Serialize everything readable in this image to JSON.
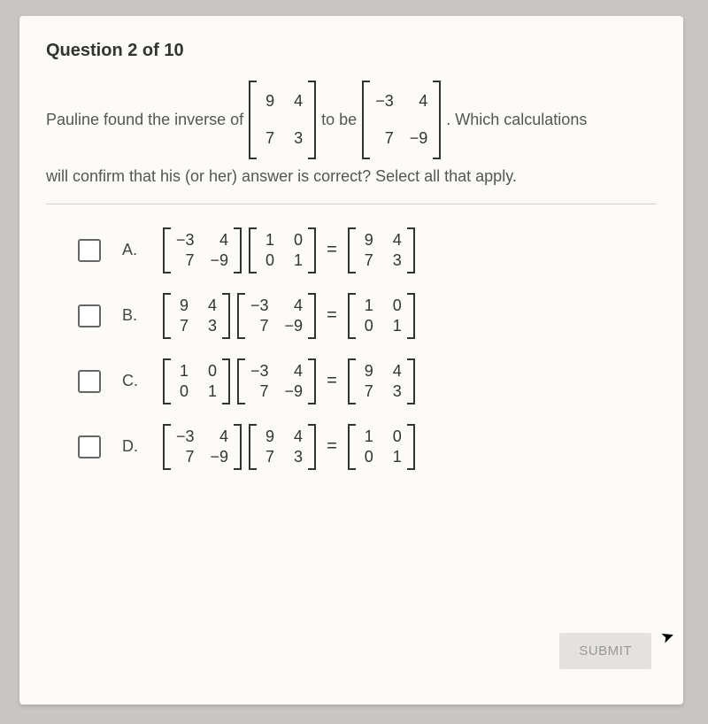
{
  "header": "Question 2 of 10",
  "stem": {
    "t1": "Pauline found the inverse of",
    "t2": "to be",
    "t3": ". Which calculations",
    "t4": "will confirm that his (or her) answer is correct? Select all that apply."
  },
  "matrices": {
    "A": [
      [
        "9",
        "4"
      ],
      [
        "7",
        "3"
      ]
    ],
    "B": [
      [
        "−3",
        "4"
      ],
      [
        "7",
        "−9"
      ]
    ],
    "I": [
      [
        "1",
        "0"
      ],
      [
        "0",
        "1"
      ]
    ]
  },
  "eq": "=",
  "options": [
    {
      "label": "A.",
      "seq": [
        "B",
        "I",
        "eq",
        "A"
      ]
    },
    {
      "label": "B.",
      "seq": [
        "A",
        "B",
        "eq",
        "I"
      ]
    },
    {
      "label": "C.",
      "seq": [
        "I",
        "B",
        "eq",
        "A"
      ]
    },
    {
      "label": "D.",
      "seq": [
        "B",
        "A",
        "eq",
        "I"
      ]
    }
  ],
  "submit": "SUBMIT",
  "colors": {
    "page_bg": "#fcfbf7",
    "outer_bg": "#c8c6c2",
    "text": "#4a4a4a",
    "border": "#333333",
    "submit_bg": "#e3e2de",
    "submit_text": "#9a9892"
  },
  "fonts": {
    "body_size": 18,
    "header_size": 20
  }
}
